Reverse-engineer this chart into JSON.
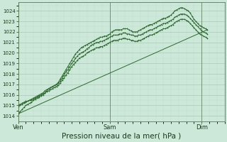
{
  "bg_color": "#cce8d8",
  "grid_color_major": "#aac8b8",
  "grid_color_minor": "#bbdccc",
  "line_color": "#2d6a2d",
  "xlabel": "Pression niveau de la mer( hPa )",
  "xlabel_fontsize": 7.5,
  "ylim": [
    1013.5,
    1024.8
  ],
  "yticks": [
    1014,
    1015,
    1016,
    1017,
    1018,
    1019,
    1020,
    1021,
    1022,
    1023,
    1024
  ],
  "xtick_labels": [
    "Ven",
    "Sam",
    "Dim"
  ],
  "xtick_positions": [
    0,
    48,
    96
  ],
  "xlim": [
    0,
    108
  ],
  "total_points": 100,
  "series1": [
    1014.2,
    1014.4,
    1014.6,
    1014.8,
    1015.0,
    1015.1,
    1015.2,
    1015.3,
    1015.5,
    1015.6,
    1015.7,
    1015.8,
    1015.9,
    1016.0,
    1016.2,
    1016.4,
    1016.6,
    1016.7,
    1016.8,
    1016.9,
    1017.0,
    1017.2,
    1017.5,
    1017.8,
    1018.1,
    1018.4,
    1018.7,
    1019.0,
    1019.3,
    1019.6,
    1019.9,
    1020.1,
    1020.3,
    1020.5,
    1020.6,
    1020.7,
    1020.8,
    1020.9,
    1021.0,
    1021.1,
    1021.2,
    1021.3,
    1021.4,
    1021.5,
    1021.5,
    1021.6,
    1021.6,
    1021.7,
    1021.8,
    1022.0,
    1022.1,
    1022.2,
    1022.2,
    1022.2,
    1022.2,
    1022.3,
    1022.3,
    1022.3,
    1022.2,
    1022.1,
    1022.0,
    1022.0,
    1022.0,
    1022.1,
    1022.2,
    1022.3,
    1022.4,
    1022.5,
    1022.6,
    1022.7,
    1022.7,
    1022.8,
    1022.9,
    1023.0,
    1023.1,
    1023.2,
    1023.3,
    1023.3,
    1023.4,
    1023.5,
    1023.6,
    1023.8,
    1024.0,
    1024.1,
    1024.2,
    1024.3,
    1024.3,
    1024.2,
    1024.1,
    1024.0,
    1023.8,
    1023.5,
    1023.2,
    1023.0,
    1022.8,
    1022.6,
    1022.5,
    1022.4,
    1022.3,
    1022.2
  ],
  "series2": [
    1014.9,
    1015.0,
    1015.1,
    1015.2,
    1015.3,
    1015.4,
    1015.5,
    1015.6,
    1015.7,
    1015.8,
    1015.9,
    1016.0,
    1016.1,
    1016.2,
    1016.4,
    1016.5,
    1016.6,
    1016.7,
    1016.8,
    1016.9,
    1017.0,
    1017.1,
    1017.3,
    1017.6,
    1017.9,
    1018.2,
    1018.4,
    1018.7,
    1019.0,
    1019.2,
    1019.5,
    1019.7,
    1019.9,
    1020.0,
    1020.1,
    1020.2,
    1020.4,
    1020.5,
    1020.7,
    1020.8,
    1020.9,
    1021.0,
    1021.0,
    1021.1,
    1021.1,
    1021.2,
    1021.3,
    1021.4,
    1021.5,
    1021.6,
    1021.7,
    1021.7,
    1021.7,
    1021.8,
    1021.8,
    1021.9,
    1021.9,
    1021.8,
    1021.8,
    1021.7,
    1021.7,
    1021.6,
    1021.6,
    1021.7,
    1021.7,
    1021.8,
    1021.9,
    1022.0,
    1022.1,
    1022.2,
    1022.2,
    1022.3,
    1022.4,
    1022.5,
    1022.6,
    1022.7,
    1022.8,
    1022.8,
    1022.9,
    1023.0,
    1023.1,
    1023.2,
    1023.4,
    1023.5,
    1023.6,
    1023.7,
    1023.7,
    1023.7,
    1023.6,
    1023.5,
    1023.3,
    1023.1,
    1022.9,
    1022.7,
    1022.5,
    1022.3,
    1022.1,
    1022.0,
    1021.9,
    1021.8
  ],
  "series3": [
    1015.0,
    1015.1,
    1015.2,
    1015.3,
    1015.4,
    1015.4,
    1015.5,
    1015.5,
    1015.6,
    1015.7,
    1015.8,
    1015.9,
    1016.0,
    1016.1,
    1016.2,
    1016.3,
    1016.4,
    1016.5,
    1016.6,
    1016.7,
    1016.8,
    1016.9,
    1017.1,
    1017.4,
    1017.6,
    1017.9,
    1018.1,
    1018.4,
    1018.7,
    1018.9,
    1019.1,
    1019.3,
    1019.5,
    1019.6,
    1019.7,
    1019.8,
    1020.0,
    1020.1,
    1020.2,
    1020.3,
    1020.4,
    1020.5,
    1020.5,
    1020.6,
    1020.6,
    1020.7,
    1020.8,
    1020.9,
    1021.0,
    1021.1,
    1021.2,
    1021.2,
    1021.2,
    1021.3,
    1021.3,
    1021.4,
    1021.4,
    1021.3,
    1021.3,
    1021.2,
    1021.2,
    1021.1,
    1021.1,
    1021.2,
    1021.2,
    1021.3,
    1021.4,
    1021.5,
    1021.6,
    1021.7,
    1021.7,
    1021.8,
    1021.9,
    1022.0,
    1022.1,
    1022.2,
    1022.3,
    1022.3,
    1022.4,
    1022.5,
    1022.6,
    1022.7,
    1022.9,
    1023.0,
    1023.1,
    1023.2,
    1023.2,
    1023.2,
    1023.1,
    1023.0,
    1022.8,
    1022.6,
    1022.4,
    1022.2,
    1022.0,
    1021.8,
    1021.7,
    1021.6,
    1021.5,
    1021.4
  ],
  "trend_x": [
    0,
    99
  ],
  "trend_y": [
    1014.2,
    1022.2
  ]
}
